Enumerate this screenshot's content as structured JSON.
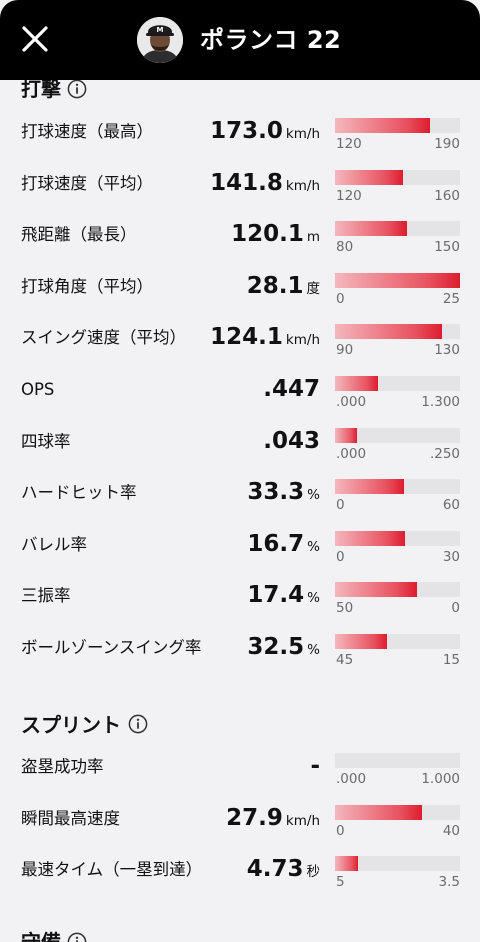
{
  "header": {
    "player_name": "ポランコ 22"
  },
  "sections": {
    "batting": {
      "title": "打撃",
      "rows": [
        {
          "label": "打球速度（最高）",
          "value": "173.0",
          "unit": "km/h",
          "bar_min": "120",
          "bar_max": "190",
          "fill": 0.76
        },
        {
          "label": "打球速度（平均）",
          "value": "141.8",
          "unit": "km/h",
          "bar_min": "120",
          "bar_max": "160",
          "fill": 0.545
        },
        {
          "label": "飛距離（最長）",
          "value": "120.1",
          "unit": "m",
          "bar_min": "80",
          "bar_max": "150",
          "fill": 0.573
        },
        {
          "label": "打球角度（平均）",
          "value": "28.1",
          "unit": "度",
          "bar_min": "0",
          "bar_max": "25",
          "fill": 1.0
        },
        {
          "label": "スイング速度（平均）",
          "value": "124.1",
          "unit": "km/h",
          "bar_min": "90",
          "bar_max": "130",
          "fill": 0.853
        },
        {
          "label": "OPS",
          "value": ".447",
          "unit": "",
          "bar_min": ".000",
          "bar_max": "1.300",
          "fill": 0.344
        },
        {
          "label": "四球率",
          "value": ".043",
          "unit": "",
          "bar_min": ".000",
          "bar_max": ".250",
          "fill": 0.172
        },
        {
          "label": "ハードヒット率",
          "value": "33.3",
          "unit": "%",
          "bar_min": "0",
          "bar_max": "60",
          "fill": 0.555
        },
        {
          "label": "バレル率",
          "value": "16.7",
          "unit": "%",
          "bar_min": "0",
          "bar_max": "30",
          "fill": 0.557
        },
        {
          "label": "三振率",
          "value": "17.4",
          "unit": "%",
          "bar_min": "50",
          "bar_max": "0",
          "fill": 0.652
        },
        {
          "label": "ボールゾーンスイング率",
          "value": "32.5",
          "unit": "%",
          "bar_min": "45",
          "bar_max": "15",
          "fill": 0.417
        }
      ]
    },
    "sprint": {
      "title": "スプリント",
      "rows": [
        {
          "label": "盗塁成功率",
          "value": "-",
          "unit": "",
          "bar_min": ".000",
          "bar_max": "1.000",
          "fill": 0
        },
        {
          "label": "瞬間最高速度",
          "value": "27.9",
          "unit": "km/h",
          "bar_min": "0",
          "bar_max": "40",
          "fill": 0.698
        },
        {
          "label": "最速タイム（一塁到達）",
          "value": "4.73",
          "unit": "秒",
          "bar_min": "5",
          "bar_max": "3.5",
          "fill": 0.18
        }
      ]
    },
    "next": {
      "title": "守備"
    }
  },
  "colors": {
    "bar_fill_start": "#f4b7bd",
    "bar_fill_end": "#dc1d2e",
    "bar_track": "#e4e4e7",
    "header_bg": "#000000"
  },
  "icons": {
    "close": "close-icon",
    "info": "info-icon",
    "avatar": "avatar"
  }
}
